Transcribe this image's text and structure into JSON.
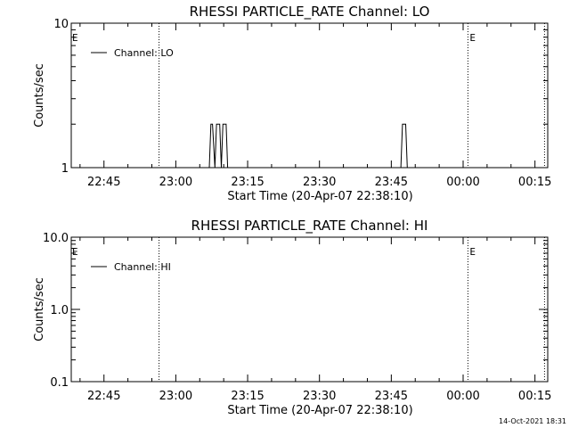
{
  "chart_data": [
    {
      "type": "line",
      "title": "RHESSI PARTICLE_RATE Channel: LO",
      "xlabel": "Start Time (20-Apr-07 22:38:10)",
      "ylabel": "Counts/sec",
      "yscale": "log",
      "ylim": [
        1,
        10
      ],
      "ytick_labels": [
        "10",
        "1"
      ],
      "xlim": [
        "22:38:10",
        "00:17:40"
      ],
      "xtick_labels": [
        "22:45",
        "23:00",
        "23:15",
        "23:30",
        "23:45",
        "00:00",
        "00:15"
      ],
      "series": [
        {
          "name": "Channel: LO",
          "x": [
            "22:38:10",
            "23:07:00",
            "23:07:20",
            "23:07:40",
            "23:08:10",
            "23:08:30",
            "23:08:50",
            "23:09:10",
            "23:09:30",
            "23:09:50",
            "23:10:10",
            "23:10:30",
            "23:10:50",
            "23:11:10",
            "23:47:00",
            "23:47:20",
            "23:47:40",
            "23:48:00",
            "23:48:20",
            "00:17:40"
          ],
          "values": [
            1,
            1,
            2,
            2,
            1,
            2,
            2,
            2,
            1,
            2,
            2,
            2,
            1,
            1,
            1,
            2,
            2,
            2,
            1,
            1
          ]
        }
      ],
      "vlines": [
        {
          "x": "22:56:30",
          "label": ""
        },
        {
          "x": "00:01:00",
          "label": "E"
        },
        {
          "x": "00:17:00",
          "label": ""
        }
      ],
      "corner_label": "E",
      "legend_position": "top-left"
    },
    {
      "type": "line",
      "title": "RHESSI PARTICLE_RATE Channel: HI",
      "xlabel": "Start Time (20-Apr-07 22:38:10)",
      "ylabel": "Counts/sec",
      "yscale": "log",
      "ylim": [
        0.1,
        10
      ],
      "ytick_labels": [
        "10.0",
        "1.0",
        "0.1"
      ],
      "xlim": [
        "22:38:10",
        "00:17:40"
      ],
      "xtick_labels": [
        "22:45",
        "23:00",
        "23:15",
        "23:30",
        "23:45",
        "00:00",
        "00:15"
      ],
      "series": [
        {
          "name": "Channel: HI",
          "x": [],
          "values": []
        }
      ],
      "vlines": [
        {
          "x": "22:56:30",
          "label": ""
        },
        {
          "x": "00:01:00",
          "label": "E"
        },
        {
          "x": "00:17:00",
          "label": ""
        }
      ],
      "corner_label": "E",
      "legend_position": "top-left"
    }
  ],
  "timestamp": "14-Oct-2021 18:31"
}
